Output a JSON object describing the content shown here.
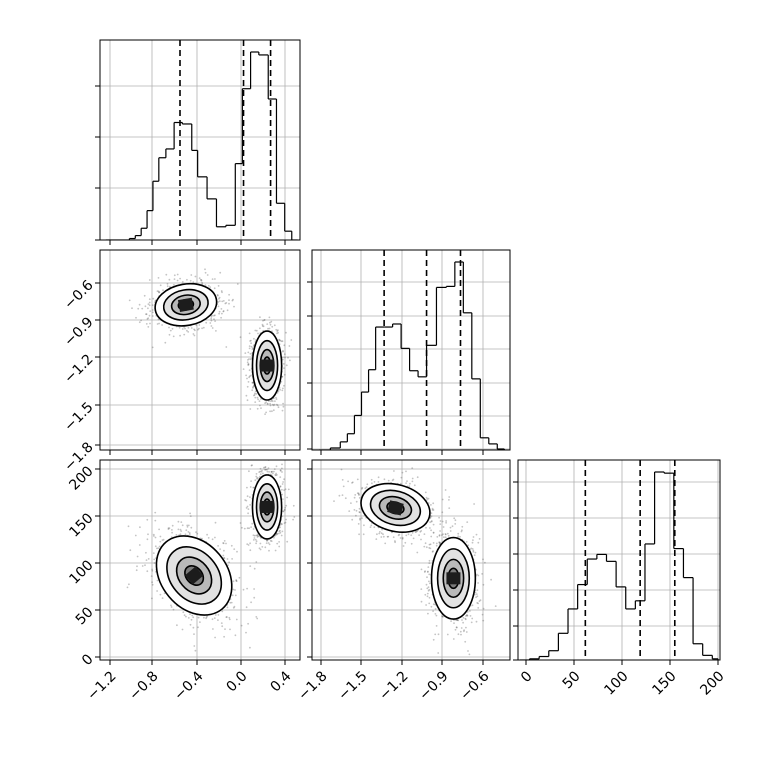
{
  "chart_data": [
    {
      "type": "histogram",
      "panel": "hist-param-0",
      "x_range": [
        -1.25,
        0.45
      ],
      "bins": [
        {
          "x0": -1.2,
          "x1": -1.1,
          "count": 0
        },
        {
          "x0": -1.1,
          "x1": -1.0,
          "count": 0
        },
        {
          "x0": -1.0,
          "x1": -0.95,
          "count": 1
        },
        {
          "x0": -0.95,
          "x1": -0.9,
          "count": 3
        },
        {
          "x0": -0.9,
          "x1": -0.85,
          "count": 8
        },
        {
          "x0": -0.85,
          "x1": -0.8,
          "count": 20
        },
        {
          "x0": -0.8,
          "x1": -0.75,
          "count": 40
        },
        {
          "x0": -0.75,
          "x1": -0.69,
          "count": 56
        },
        {
          "x0": -0.69,
          "x1": -0.62,
          "count": 62
        },
        {
          "x0": -0.62,
          "x1": -0.55,
          "count": 80
        },
        {
          "x0": -0.55,
          "x1": -0.47,
          "count": 79
        },
        {
          "x0": -0.47,
          "x1": -0.42,
          "count": 61
        },
        {
          "x0": -0.42,
          "x1": -0.34,
          "count": 43
        },
        {
          "x0": -0.34,
          "x1": -0.26,
          "count": 28
        },
        {
          "x0": -0.26,
          "x1": -0.18,
          "count": 9
        },
        {
          "x0": -0.18,
          "x1": -0.1,
          "count": 10
        },
        {
          "x0": -0.1,
          "x1": -0.04,
          "count": 52
        },
        {
          "x0": -0.04,
          "x1": 0.03,
          "count": 103
        },
        {
          "x0": 0.03,
          "x1": 0.1,
          "count": 128
        },
        {
          "x0": 0.1,
          "x1": 0.18,
          "count": 126
        },
        {
          "x0": 0.18,
          "x1": 0.25,
          "count": 96
        },
        {
          "x0": 0.25,
          "x1": 0.32,
          "count": 25
        },
        {
          "x0": 0.32,
          "x1": 0.38,
          "count": 6
        },
        {
          "x0": 0.38,
          "x1": 0.43,
          "count": 0
        }
      ],
      "quantile_lines": [
        -0.57,
        -0.03,
        0.2
      ],
      "x_ticks": [],
      "grid": true
    },
    {
      "type": "histogram",
      "panel": "hist-param-1",
      "x_range": [
        -1.85,
        -0.45
      ],
      "bins": [
        {
          "x0": -1.8,
          "x1": -1.72,
          "count": 0
        },
        {
          "x0": -1.72,
          "x1": -1.65,
          "count": 2
        },
        {
          "x0": -1.65,
          "x1": -1.6,
          "count": 8
        },
        {
          "x0": -1.6,
          "x1": -1.55,
          "count": 16
        },
        {
          "x0": -1.55,
          "x1": -1.5,
          "count": 34
        },
        {
          "x0": -1.5,
          "x1": -1.45,
          "count": 57
        },
        {
          "x0": -1.45,
          "x1": -1.4,
          "count": 79
        },
        {
          "x0": -1.4,
          "x1": -1.34,
          "count": 121
        },
        {
          "x0": -1.34,
          "x1": -1.28,
          "count": 121
        },
        {
          "x0": -1.28,
          "x1": -1.22,
          "count": 124
        },
        {
          "x0": -1.22,
          "x1": -1.16,
          "count": 100
        },
        {
          "x0": -1.16,
          "x1": -1.1,
          "count": 78
        },
        {
          "x0": -1.1,
          "x1": -1.04,
          "count": 72
        },
        {
          "x0": -1.04,
          "x1": -0.97,
          "count": 103
        },
        {
          "x0": -0.97,
          "x1": -0.9,
          "count": 160
        },
        {
          "x0": -0.9,
          "x1": -0.84,
          "count": 161
        },
        {
          "x0": -0.84,
          "x1": -0.78,
          "count": 185
        },
        {
          "x0": -0.78,
          "x1": -0.72,
          "count": 135
        },
        {
          "x0": -0.72,
          "x1": -0.66,
          "count": 70
        },
        {
          "x0": -0.66,
          "x1": -0.6,
          "count": 12
        },
        {
          "x0": -0.6,
          "x1": -0.54,
          "count": 6
        },
        {
          "x0": -0.54,
          "x1": -0.49,
          "count": 1
        }
      ],
      "quantile_lines": [
        -1.34,
        -1.04,
        -0.8
      ],
      "x_ticks": [],
      "grid": true
    },
    {
      "type": "histogram",
      "panel": "hist-param-2",
      "x_range": [
        -2,
        208
      ],
      "bins": [
        {
          "x0": 0,
          "x1": 10,
          "count": 0
        },
        {
          "x0": 10,
          "x1": 20,
          "count": 1
        },
        {
          "x0": 20,
          "x1": 30,
          "count": 3
        },
        {
          "x0": 30,
          "x1": 40,
          "count": 8
        },
        {
          "x0": 40,
          "x1": 50,
          "count": 23
        },
        {
          "x0": 50,
          "x1": 60,
          "count": 44
        },
        {
          "x0": 60,
          "x1": 70,
          "count": 65
        },
        {
          "x0": 70,
          "x1": 80,
          "count": 87
        },
        {
          "x0": 80,
          "x1": 90,
          "count": 91
        },
        {
          "x0": 90,
          "x1": 100,
          "count": 85
        },
        {
          "x0": 100,
          "x1": 110,
          "count": 63
        },
        {
          "x0": 110,
          "x1": 120,
          "count": 44
        },
        {
          "x0": 120,
          "x1": 130,
          "count": 51
        },
        {
          "x0": 130,
          "x1": 140,
          "count": 100
        },
        {
          "x0": 140,
          "x1": 150,
          "count": 162
        },
        {
          "x0": 150,
          "x1": 160,
          "count": 161
        },
        {
          "x0": 160,
          "x1": 170,
          "count": 96
        },
        {
          "x0": 170,
          "x1": 180,
          "count": 71
        },
        {
          "x0": 180,
          "x1": 190,
          "count": 14
        },
        {
          "x0": 190,
          "x1": 200,
          "count": 4
        },
        {
          "x0": 200,
          "x1": 206,
          "count": 1
        }
      ],
      "quantile_lines": [
        68,
        125,
        161
      ],
      "x_ticks": [
        "0",
        "50",
        "100",
        "150",
        "200"
      ],
      "grid": true
    },
    {
      "type": "density",
      "panel": "density-p1-vs-p0",
      "x_range": [
        -1.25,
        0.45
      ],
      "y_range": [
        -1.8,
        -0.45
      ],
      "x_ticks": [],
      "y_ticks": [
        "−0.6",
        "−0.9",
        "−1.2",
        "−1.5",
        "−1.8"
      ],
      "clusters": [
        {
          "center": [
            -0.52,
            -0.82
          ],
          "spread": [
            0.17,
            0.09
          ],
          "rotation_deg": -10
        },
        {
          "center": [
            0.17,
            -1.23
          ],
          "spread": [
            0.08,
            0.15
          ],
          "rotation_deg": 0
        }
      ],
      "grid": true
    },
    {
      "type": "density",
      "panel": "density-p2-vs-p0",
      "x_range": [
        -1.25,
        0.45
      ],
      "y_range": [
        -5,
        208
      ],
      "x_ticks": [
        "−1.2",
        "−0.8",
        "−0.4",
        "0.0",
        "0.4"
      ],
      "y_ticks": [
        "0",
        "50",
        "100",
        "150",
        "200"
      ],
      "clusters": [
        {
          "center": [
            -0.45,
            85
          ],
          "spread": [
            0.18,
            30
          ],
          "rotation_deg": -40
        },
        {
          "center": [
            0.17,
            158
          ],
          "spread": [
            0.08,
            22
          ],
          "rotation_deg": 0
        }
      ],
      "grid": true
    },
    {
      "type": "density",
      "panel": "density-p2-vs-p1",
      "x_range": [
        -1.85,
        -0.45
      ],
      "y_range": [
        -5,
        208
      ],
      "x_ticks": [
        "−1.8",
        "−1.5",
        "−1.2",
        "−0.9",
        "−0.6"
      ],
      "y_ticks": [],
      "clusters": [
        {
          "center": [
            -1.26,
            157
          ],
          "spread": [
            0.16,
            16
          ],
          "rotation_deg": 15
        },
        {
          "center": [
            -0.85,
            82
          ],
          "spread": [
            0.1,
            28
          ],
          "rotation_deg": 0
        }
      ],
      "grid": true
    }
  ]
}
